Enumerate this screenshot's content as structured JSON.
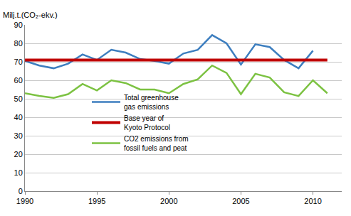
{
  "chart_data": {
    "type": "line",
    "y_label": "Milj.t.(CO₂-ekv.)",
    "x": [
      1990,
      1991,
      1992,
      1993,
      1994,
      1995,
      1996,
      1997,
      1998,
      1999,
      2000,
      2001,
      2002,
      2003,
      2004,
      2005,
      2006,
      2007,
      2008,
      2009,
      2010,
      2011
    ],
    "series": [
      {
        "name": "Total greenhouse gas emissions",
        "color": "#3d7ebf",
        "values": [
          70.5,
          68,
          66.5,
          69,
          74,
          71,
          76.5,
          75,
          71.5,
          70.5,
          69,
          74.5,
          76.5,
          84.5,
          80,
          68.5,
          79.5,
          78,
          71,
          66.5,
          76,
          null
        ]
      },
      {
        "name": "Base year of Kyoto Protocol",
        "color": "#c00000",
        "values": [
          71,
          71,
          71,
          71,
          71,
          71,
          71,
          71,
          71,
          71,
          71,
          71,
          71,
          71,
          71,
          71,
          71,
          71,
          71,
          71,
          71,
          71
        ]
      },
      {
        "name": "CO2 emissions from fossil fuels and peat",
        "color": "#7cc242",
        "values": [
          53,
          51.5,
          50.5,
          52.5,
          58,
          54.5,
          60,
          58.5,
          55,
          55,
          53,
          58,
          60.5,
          68,
          64,
          52.5,
          63.5,
          61.5,
          53.5,
          51.5,
          60,
          53
        ]
      }
    ],
    "xlim": [
      1990,
      2012
    ],
    "xticks": [
      1990,
      1995,
      2000,
      2005,
      2010
    ],
    "ylim": [
      0,
      90
    ],
    "yticks": [
      0,
      10,
      20,
      30,
      40,
      50,
      60,
      70,
      80,
      90
    ],
    "grid": true,
    "legend": "center"
  }
}
